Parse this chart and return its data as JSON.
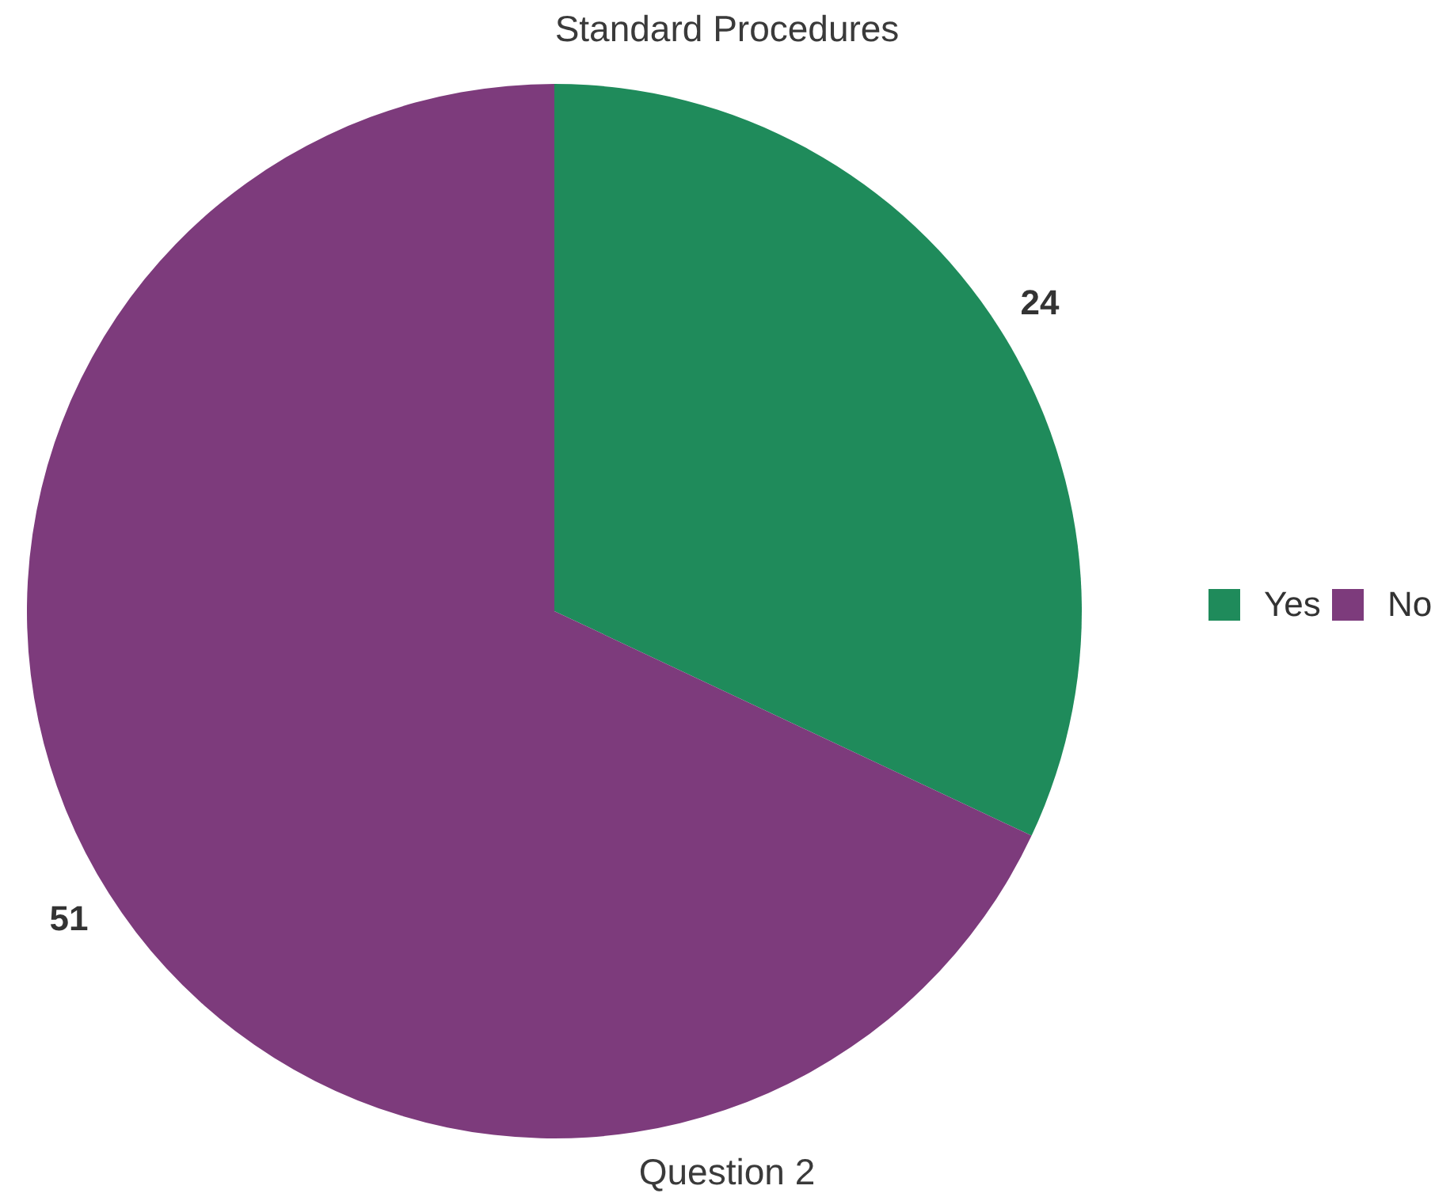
{
  "chart_data": {
    "type": "pie",
    "title": "Standard Procedures",
    "xlabel": "Question 2",
    "categories": [
      "Yes",
      "No"
    ],
    "values": [
      24,
      51
    ],
    "colors": [
      "#1f8b5b",
      "#7d3b7c"
    ],
    "data_labels": true,
    "legend": "right"
  }
}
